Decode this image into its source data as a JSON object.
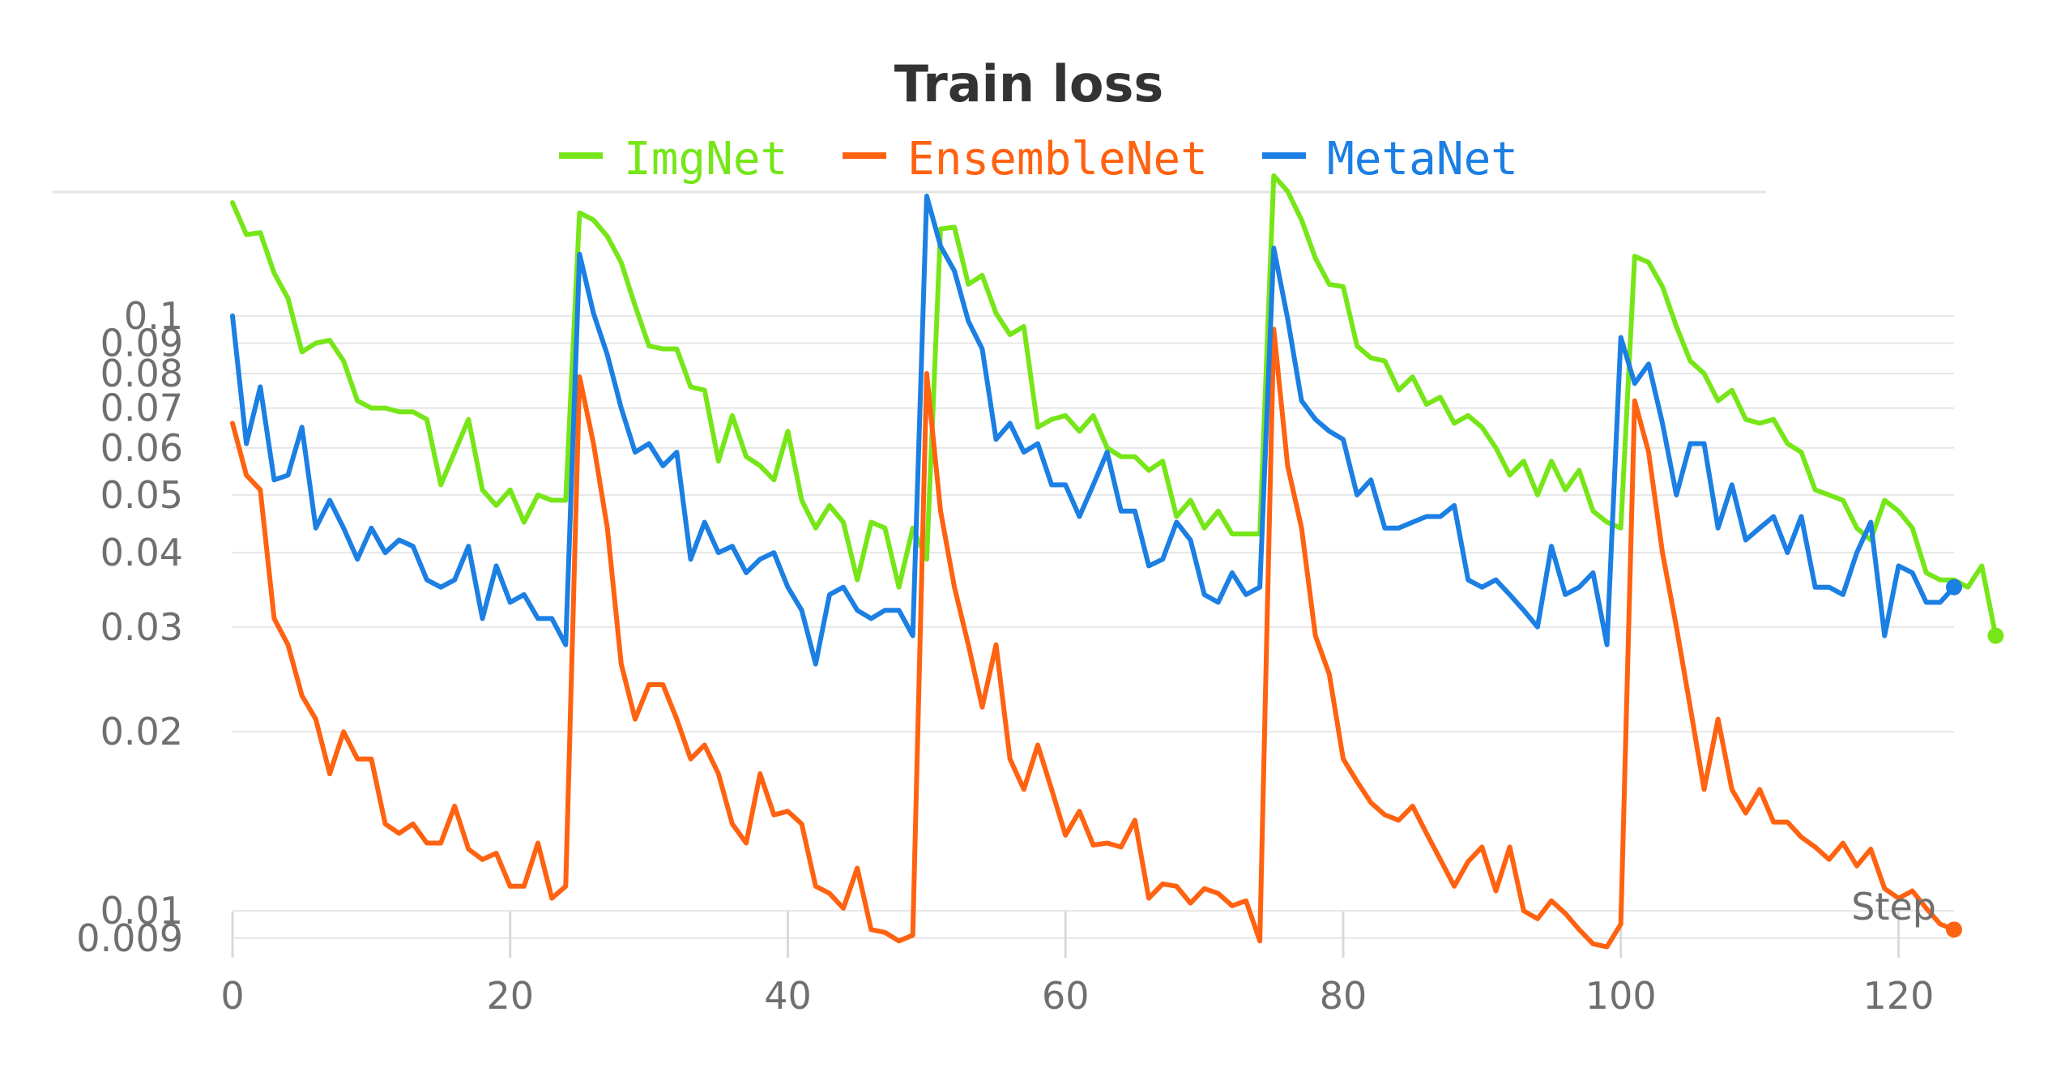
{
  "chart_data": {
    "type": "line",
    "title": "Train loss",
    "xlabel": "Step",
    "ylabel": "",
    "yscale": "log",
    "xlim": [
      0,
      124
    ],
    "ylim": [
      0.0085,
      0.16
    ],
    "x_ticks": [
      0,
      20,
      40,
      60,
      80,
      100,
      120
    ],
    "y_ticks": [
      0.009,
      0.01,
      0.02,
      0.03,
      0.04,
      0.05,
      0.06,
      0.07,
      0.08,
      0.09,
      0.1
    ],
    "y_tick_labels": [
      "0.009",
      "0.01",
      "0.02",
      "0.03",
      "0.04",
      "0.05",
      "0.06",
      "0.07",
      "0.08",
      "0.09",
      "0.1"
    ],
    "grid": true,
    "legend_position": "top-center",
    "series": [
      {
        "name": "ImgNet",
        "color": "#77e619",
        "values": [
          0.155,
          0.137,
          0.138,
          0.118,
          0.107,
          0.087,
          0.09,
          0.091,
          0.084,
          0.072,
          0.07,
          0.07,
          0.069,
          0.069,
          0.067,
          0.052,
          0.059,
          0.067,
          0.051,
          0.048,
          0.051,
          0.045,
          0.05,
          0.049,
          0.049,
          0.149,
          0.145,
          0.136,
          0.123,
          0.104,
          0.089,
          0.088,
          0.088,
          0.076,
          0.075,
          0.057,
          0.068,
          0.058,
          0.056,
          0.053,
          0.064,
          0.049,
          0.044,
          0.048,
          0.045,
          0.036,
          0.045,
          0.044,
          0.035,
          0.044,
          0.039,
          0.14,
          0.141,
          0.113,
          0.117,
          0.101,
          0.093,
          0.096,
          0.065,
          0.067,
          0.068,
          0.064,
          0.068,
          0.06,
          0.058,
          0.058,
          0.055,
          0.057,
          0.046,
          0.049,
          0.044,
          0.047,
          0.043,
          0.043,
          0.043,
          0.172,
          0.162,
          0.145,
          0.125,
          0.113,
          0.112,
          0.089,
          0.085,
          0.084,
          0.075,
          0.079,
          0.071,
          0.073,
          0.066,
          0.068,
          0.065,
          0.06,
          0.054,
          0.057,
          0.05,
          0.057,
          0.051,
          0.055,
          0.047,
          0.045,
          0.044,
          0.126,
          0.123,
          0.112,
          0.096,
          0.084,
          0.08,
          0.072,
          0.075,
          0.067,
          0.066,
          0.067,
          0.061,
          0.059,
          0.051,
          0.05,
          0.049,
          0.044,
          0.042,
          0.049,
          0.047,
          0.044,
          0.037,
          0.036,
          0.036,
          0.035,
          0.038,
          0.029
        ]
      },
      {
        "name": "EnsembleNet",
        "color": "#ff6210",
        "values": [
          0.066,
          0.054,
          0.051,
          0.031,
          0.028,
          0.023,
          0.021,
          0.017,
          0.02,
          0.018,
          0.018,
          0.014,
          0.0135,
          0.014,
          0.013,
          0.013,
          0.015,
          0.0127,
          0.0122,
          0.0125,
          0.011,
          0.011,
          0.013,
          0.0105,
          0.011,
          0.079,
          0.061,
          0.044,
          0.026,
          0.021,
          0.024,
          0.024,
          0.021,
          0.018,
          0.019,
          0.017,
          0.014,
          0.013,
          0.017,
          0.0145,
          0.0147,
          0.014,
          0.011,
          0.0107,
          0.0101,
          0.0118,
          0.0093,
          0.0092,
          0.0089,
          0.0091,
          0.08,
          0.047,
          0.035,
          0.028,
          0.022,
          0.028,
          0.018,
          0.016,
          0.019,
          0.016,
          0.0134,
          0.0147,
          0.0129,
          0.013,
          0.0128,
          0.0142,
          0.0105,
          0.0111,
          0.011,
          0.0103,
          0.0109,
          0.0107,
          0.0102,
          0.0104,
          0.0089,
          0.095,
          0.056,
          0.044,
          0.029,
          0.025,
          0.018,
          0.0165,
          0.0152,
          0.0145,
          0.0142,
          0.015,
          0.0135,
          0.0122,
          0.011,
          0.0121,
          0.0128,
          0.0108,
          0.0128,
          0.01,
          0.0097,
          0.0104,
          0.0099,
          0.0093,
          0.0088,
          0.0087,
          0.0095,
          0.072,
          0.059,
          0.04,
          0.03,
          0.022,
          0.016,
          0.021,
          0.016,
          0.0146,
          0.016,
          0.0141,
          0.0141,
          0.0133,
          0.0128,
          0.0122,
          0.013,
          0.0119,
          0.0127,
          0.0109,
          0.0105,
          0.0108,
          0.0101,
          0.0095,
          0.0093
        ]
      },
      {
        "name": "MetaNet",
        "color": "#1b7fe3",
        "values": [
          0.1,
          0.061,
          0.076,
          0.053,
          0.054,
          0.065,
          0.044,
          0.049,
          0.044,
          0.039,
          0.044,
          0.04,
          0.042,
          0.041,
          0.036,
          0.035,
          0.036,
          0.041,
          0.031,
          0.038,
          0.033,
          0.034,
          0.031,
          0.031,
          0.028,
          0.127,
          0.101,
          0.086,
          0.07,
          0.059,
          0.061,
          0.056,
          0.059,
          0.039,
          0.045,
          0.04,
          0.041,
          0.037,
          0.039,
          0.04,
          0.035,
          0.032,
          0.026,
          0.034,
          0.035,
          0.032,
          0.031,
          0.032,
          0.032,
          0.029,
          0.159,
          0.131,
          0.119,
          0.098,
          0.088,
          0.062,
          0.066,
          0.059,
          0.061,
          0.052,
          0.052,
          0.046,
          0.052,
          0.059,
          0.047,
          0.047,
          0.038,
          0.039,
          0.045,
          0.042,
          0.034,
          0.033,
          0.037,
          0.034,
          0.035,
          0.13,
          0.099,
          0.072,
          0.067,
          0.064,
          0.062,
          0.05,
          0.053,
          0.044,
          0.044,
          0.045,
          0.046,
          0.046,
          0.048,
          0.036,
          0.035,
          0.036,
          0.034,
          0.032,
          0.03,
          0.041,
          0.034,
          0.035,
          0.037,
          0.028,
          0.092,
          0.077,
          0.083,
          0.066,
          0.05,
          0.061,
          0.061,
          0.044,
          0.052,
          0.042,
          0.044,
          0.046,
          0.04,
          0.046,
          0.035,
          0.035,
          0.034,
          0.04,
          0.045,
          0.029,
          0.038,
          0.037,
          0.033,
          0.033,
          0.035
        ]
      }
    ]
  }
}
